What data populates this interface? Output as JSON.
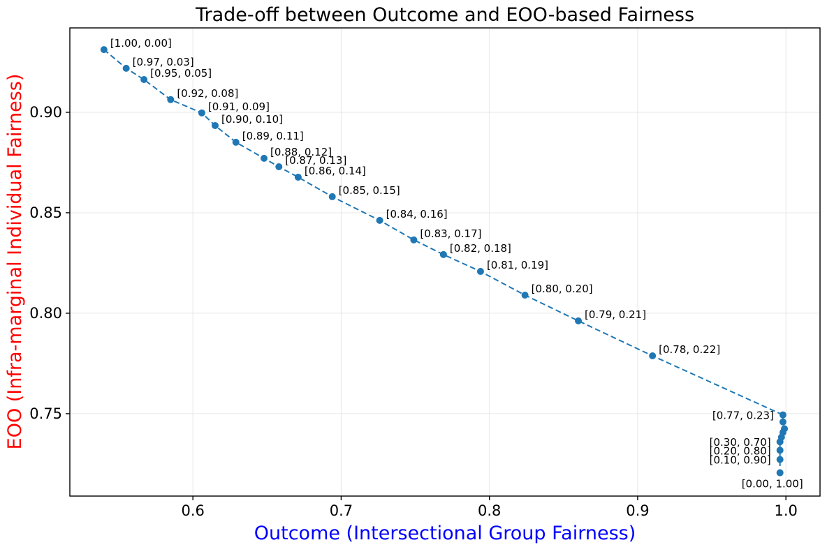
{
  "chart_data": {
    "type": "line",
    "title": "Trade-off between Outcome and EOO-based Fairness",
    "xlabel": "Outcome (Intersectional Group Fairness)",
    "ylabel": "EOO (Infra-marginal Individual Fairness)",
    "xlabel_color": "#0000ff",
    "ylabel_color": "#ff0000",
    "series_color": "#1f77b4",
    "grid": true,
    "grid_color": "#e7e7e7",
    "line_style": "dashed",
    "legend": "none",
    "xlim": [
      0.517,
      1.023
    ],
    "ylim": [
      0.709,
      0.942
    ],
    "xticks": [
      0.6,
      0.7,
      0.8,
      0.9,
      1.0
    ],
    "xtick_labels": [
      "0.6",
      "0.7",
      "0.8",
      "0.9",
      "1.0"
    ],
    "yticks": [
      0.75,
      0.8,
      0.85,
      0.9
    ],
    "ytick_labels": [
      "0.75",
      "0.80",
      "0.85",
      "0.90"
    ],
    "points": [
      {
        "label": "[1.00, 0.00]",
        "x": 0.54,
        "y": 0.9312,
        "label_pos": "ur"
      },
      {
        "label": "[0.97, 0.03]",
        "x": 0.555,
        "y": 0.9219,
        "label_pos": "ur"
      },
      {
        "label": "[0.95, 0.05]",
        "x": 0.567,
        "y": 0.9163,
        "label_pos": "ur"
      },
      {
        "label": "[0.92, 0.08]",
        "x": 0.585,
        "y": 0.9063,
        "label_pos": "ur"
      },
      {
        "label": "[0.91, 0.09]",
        "x": 0.606,
        "y": 0.8997,
        "label_pos": "ur"
      },
      {
        "label": "[0.90, 0.10]",
        "x": 0.615,
        "y": 0.8934,
        "label_pos": "ur"
      },
      {
        "label": "[0.89, 0.11]",
        "x": 0.629,
        "y": 0.8851,
        "label_pos": "ur"
      },
      {
        "label": "[0.88, 0.12]",
        "x": 0.648,
        "y": 0.8771,
        "label_pos": "ur"
      },
      {
        "label": "[0.87, 0.13]",
        "x": 0.658,
        "y": 0.8729,
        "label_pos": "ur"
      },
      {
        "label": "[0.86, 0.14]",
        "x": 0.671,
        "y": 0.8677,
        "label_pos": "ur"
      },
      {
        "label": "[0.85, 0.15]",
        "x": 0.694,
        "y": 0.858,
        "label_pos": "ur"
      },
      {
        "label": "[0.84, 0.16]",
        "x": 0.726,
        "y": 0.8462,
        "label_pos": "ur"
      },
      {
        "label": "[0.83, 0.17]",
        "x": 0.749,
        "y": 0.8365,
        "label_pos": "ur"
      },
      {
        "label": "[0.82, 0.18]",
        "x": 0.769,
        "y": 0.8292,
        "label_pos": "ur"
      },
      {
        "label": "[0.81, 0.19]",
        "x": 0.794,
        "y": 0.8208,
        "label_pos": "ur"
      },
      {
        "label": "[0.80, 0.20]",
        "x": 0.824,
        "y": 0.809,
        "label_pos": "ur"
      },
      {
        "label": "[0.79, 0.21]",
        "x": 0.86,
        "y": 0.7962,
        "label_pos": "ur"
      },
      {
        "label": "[0.78, 0.22]",
        "x": 0.91,
        "y": 0.7788,
        "label_pos": "ur"
      },
      {
        "label": "[0.77, 0.23]",
        "x": 0.998,
        "y": 0.7494,
        "label_pos": "left"
      },
      {
        "label": "",
        "x": 0.998,
        "y": 0.7459,
        "label_pos": "none"
      },
      {
        "label": "",
        "x": 0.999,
        "y": 0.7425,
        "label_pos": "none"
      },
      {
        "label": "",
        "x": 0.998,
        "y": 0.7407,
        "label_pos": "none"
      },
      {
        "label": "",
        "x": 0.997,
        "y": 0.7383,
        "label_pos": "none"
      },
      {
        "label": "[0.30, 0.70]",
        "x": 0.996,
        "y": 0.736,
        "label_pos": "left"
      },
      {
        "label": "[0.20, 0.80]",
        "x": 0.996,
        "y": 0.7318,
        "label_pos": "left"
      },
      {
        "label": "[0.10, 0.90]",
        "x": 0.996,
        "y": 0.7272,
        "label_pos": "left"
      },
      {
        "label": "[0.00, 1.00]",
        "x": 0.996,
        "y": 0.7206,
        "label_pos": "below-left"
      }
    ]
  }
}
